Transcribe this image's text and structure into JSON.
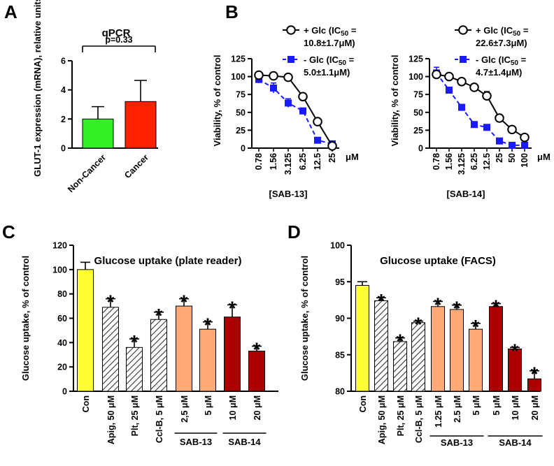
{
  "panels": {
    "a": "A",
    "b": "B",
    "c": "C",
    "d": "D"
  },
  "chart_data": [
    {
      "id": "A",
      "type": "bar",
      "title": "qPCR",
      "ylabel": "GLUT-1 expression (mRNA), relative units",
      "ylim": [
        0,
        6
      ],
      "yticks": [
        0,
        2,
        4,
        6
      ],
      "categories": [
        "Non-Cancer",
        "Cancer"
      ],
      "values": [
        2.0,
        3.2
      ],
      "errors": [
        0.85,
        1.45
      ],
      "colors": [
        "#33ee22",
        "#ff2200"
      ],
      "annotation": "p=0.33"
    },
    {
      "id": "B1",
      "type": "line",
      "xlabel": "[SAB-13]",
      "x_unit": "μM",
      "ylabel": "Viability, % of control",
      "ylim": [
        0,
        125
      ],
      "yticks": [
        0,
        25,
        50,
        75,
        100,
        125
      ],
      "x": [
        "0.78",
        "1.56",
        "3.125",
        "6.25",
        "12.5",
        "25"
      ],
      "series": [
        {
          "name": "+ Glc (IC50 = 10.8±1.7μM)",
          "name_parts": [
            "+ Glc (IC",
            "50",
            " =",
            "10.8±1.7μM)"
          ],
          "values": [
            102,
            101,
            99,
            72,
            37,
            3
          ],
          "errors": [
            4,
            5,
            3,
            4,
            3,
            2
          ],
          "color": "#000000",
          "marker": "circle-open",
          "dash": false
        },
        {
          "name": "- Glc (IC50 = 5.0±1.1μM)",
          "name_parts": [
            "- Glc (IC",
            "50",
            " =",
            "5.0±1.1μM)"
          ],
          "values": [
            96,
            84,
            63,
            52,
            11,
            6
          ],
          "errors": [
            5,
            7,
            6,
            3,
            3,
            2
          ],
          "color": "#1a1aff",
          "marker": "square-filled",
          "dash": true
        }
      ]
    },
    {
      "id": "B2",
      "type": "line",
      "xlabel": "[SAB-14]",
      "x_unit": "μM",
      "ylabel": "Viability, % of control",
      "ylim": [
        0,
        125
      ],
      "yticks": [
        0,
        25,
        50,
        75,
        100,
        125
      ],
      "x": [
        "0.78",
        "1.56",
        "3.125",
        "6.25",
        "12.5",
        "25",
        "50",
        "100"
      ],
      "series": [
        {
          "name": "+ Glc (IC50 = 22.6±7.3μM)",
          "name_parts": [
            "+ Glc (IC",
            "50",
            " =",
            "22.6±7.3μM)"
          ],
          "values": [
            103,
            100,
            93,
            85,
            73,
            42,
            26,
            15
          ],
          "errors": [
            4,
            4,
            3,
            3,
            6,
            3,
            3,
            3
          ],
          "color": "#000000",
          "marker": "circle-open",
          "dash": false
        },
        {
          "name": "- Glc (IC50 = 4.7±1.4μM)",
          "name_parts": [
            "- Glc (IC",
            "50",
            " =",
            "4.7±1.4μM)"
          ],
          "values": [
            105,
            81,
            57,
            33,
            29,
            10,
            4,
            4
          ],
          "errors": [
            8,
            4,
            4,
            3,
            2,
            2,
            2,
            2
          ],
          "color": "#1a1aff",
          "marker": "square-filled",
          "dash": true
        }
      ]
    },
    {
      "id": "C",
      "type": "bar",
      "title": "Glucose uptake (plate reader)",
      "ylabel": "Glucose uptake, % of control",
      "ylim": [
        0,
        120
      ],
      "yticks": [
        0,
        20,
        40,
        60,
        80,
        100,
        120
      ],
      "categories": [
        "Con",
        "Apig, 50 μM",
        "Plt, 25 μM",
        "Ccl-B, 5 μM",
        "2,5 μM",
        "5 μM",
        "10 μM",
        "20 μM"
      ],
      "values": [
        100,
        69,
        36,
        59,
        70,
        51,
        61,
        33
      ],
      "errors": [
        6,
        7,
        7,
        6,
        6,
        6,
        10,
        4
      ],
      "star": [
        false,
        true,
        true,
        true,
        true,
        true,
        true,
        true
      ],
      "fills": [
        "yellow",
        "hatch",
        "hatch",
        "hatch",
        "orange",
        "orange",
        "red",
        "red"
      ],
      "groups": [
        {
          "label": "SAB-13",
          "from": 4,
          "to": 5
        },
        {
          "label": "SAB-14",
          "from": 6,
          "to": 7
        }
      ]
    },
    {
      "id": "D",
      "type": "bar",
      "title": "Glucose uptake (FACS)",
      "ylabel": "Glucose uptake, % of control",
      "ylim": [
        80,
        100
      ],
      "yticks": [
        80,
        85,
        90,
        95,
        100
      ],
      "categories": [
        "Con",
        "Apig, 50 μM",
        "Plt, 25 μM",
        "Ccl-B, 5 μM",
        "1.25 μM",
        "2.5 μM",
        "5 μM",
        "5 μM",
        "10 μM",
        "20 μM"
      ],
      "values": [
        94.5,
        92.4,
        86.8,
        89.4,
        91.6,
        91.2,
        88.5,
        91.6,
        85.8,
        81.7
      ],
      "errors": [
        0.5,
        0.4,
        0.5,
        0.2,
        0.7,
        0.6,
        0.8,
        0.4,
        0.2,
        1.1
      ],
      "star": [
        false,
        true,
        true,
        true,
        true,
        true,
        true,
        true,
        true,
        true
      ],
      "fills": [
        "yellow",
        "hatch",
        "hatch",
        "hatch",
        "orange",
        "orange",
        "orange",
        "red",
        "red",
        "red"
      ],
      "groups": [
        {
          "label": "SAB-13",
          "from": 4,
          "to": 6
        },
        {
          "label": "SAB-14",
          "from": 7,
          "to": 9
        }
      ]
    }
  ],
  "colors": {
    "yellow": "#ffff33",
    "orange": "#ffaa77",
    "red": "#aa0000",
    "blue": "#1a1aff",
    "hatch_bg": "#ffffff",
    "hatch_line": "#333333"
  }
}
